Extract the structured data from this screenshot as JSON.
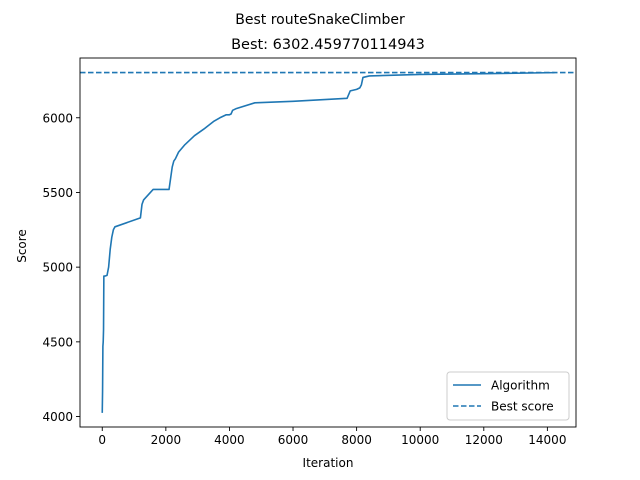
{
  "chart_data": {
    "type": "line",
    "title": "Best routeSnakeClimber",
    "subtitle": "Best: 6302.459770114943",
    "xlabel": "Iteration",
    "ylabel": "Score",
    "xlim": [
      -700,
      14900
    ],
    "ylim": [
      3930,
      6400
    ],
    "xticks": [
      0,
      2000,
      4000,
      6000,
      8000,
      10000,
      12000,
      14000
    ],
    "yticks": [
      4000,
      4500,
      5000,
      5500,
      6000
    ],
    "grid": false,
    "legend_position": "bottom-right",
    "series": [
      {
        "name": "Algorithm",
        "style": "solid",
        "color": "#1f77b4",
        "x": [
          0,
          10,
          20,
          30,
          40,
          50,
          60,
          70,
          80,
          150,
          200,
          250,
          300,
          350,
          400,
          1200,
          1250,
          1300,
          1600,
          2100,
          2200,
          2250,
          2300,
          2400,
          2600,
          2900,
          3200,
          3500,
          3700,
          3900,
          4000,
          4050,
          4100,
          4200,
          4800,
          6000,
          7700,
          7800,
          8000,
          8100,
          8150,
          8200,
          8400,
          10000,
          12000,
          14200
        ],
        "y": [
          4030,
          4170,
          4470,
          4500,
          4580,
          4940,
          4940,
          4940,
          4940,
          4945,
          5000,
          5120,
          5200,
          5250,
          5270,
          5330,
          5420,
          5450,
          5520,
          5520,
          5670,
          5710,
          5725,
          5770,
          5820,
          5880,
          5925,
          5975,
          6000,
          6020,
          6020,
          6025,
          6050,
          6060,
          6100,
          6110,
          6130,
          6180,
          6190,
          6200,
          6220,
          6270,
          6280,
          6290,
          6295,
          6302
        ]
      },
      {
        "name": "Best score",
        "style": "dashed",
        "color": "#1f77b4",
        "hline": 6302.459770114943
      }
    ]
  }
}
